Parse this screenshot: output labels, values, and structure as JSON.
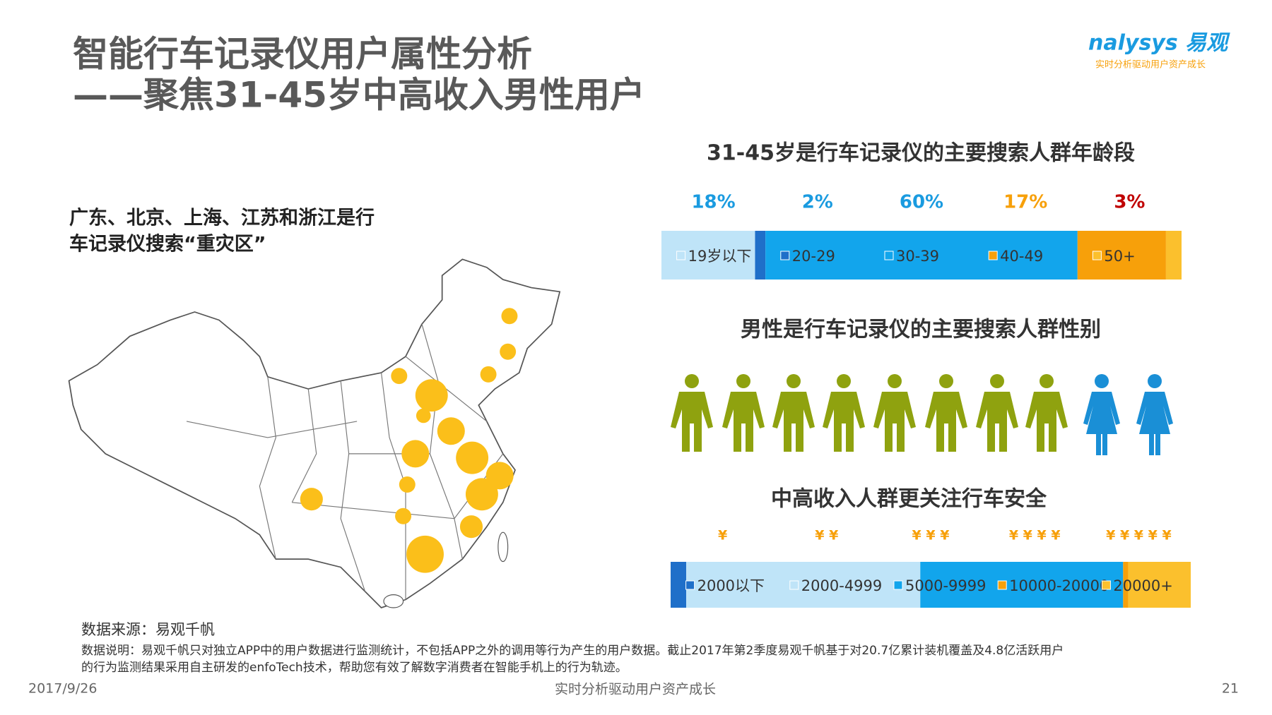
{
  "header": {
    "title_line1": "智能行车记录仪用户属性分析",
    "title_line2": "——聚焦31-45岁中高收入男性用户",
    "logo": "nalysys 易观",
    "logo_tagline": "实时分析驱动用户资产成长"
  },
  "map_caption": [
    "广东、北京、上海、江苏和浙江是行",
    "车记录仪搜索“重灾区”"
  ],
  "gender_title": "男性是行车记录仪的主要搜索人群性别",
  "chart_data": [
    {
      "type": "stacked-bar",
      "title": "31-45岁是行车记录仪的主要搜索人群年龄段",
      "categories": [
        "19岁以下",
        "20-29",
        "30-39",
        "40-49",
        "50+"
      ],
      "values": [
        18,
        2,
        60,
        17,
        3
      ],
      "value_labels": [
        "18%",
        "2%",
        "60%",
        "17%",
        "3%"
      ],
      "value_label_colors": [
        "#1a9be0",
        "#1a9be0",
        "#1a9be0",
        "#f7a00a",
        "#c00000"
      ],
      "colors": [
        "#bfe4f8",
        "#1f6fc9",
        "#12a5ec",
        "#f7a00a",
        "#fbc02d"
      ]
    },
    {
      "type": "stacked-bar",
      "title": "中高收入人群更关注行车安全",
      "categories": [
        "2000以下",
        "2000-4999",
        "5000-9999",
        "10000-20000",
        "20000+"
      ],
      "values": [
        3,
        45,
        39,
        1,
        12
      ],
      "symbols": [
        "¥",
        "¥ ¥",
        "¥ ¥ ¥",
        "¥ ¥ ¥ ¥",
        "¥ ¥ ¥ ¥ ¥"
      ],
      "colors": [
        "#1f6fc9",
        "#bfe4f8",
        "#12a5ec",
        "#f7a00a",
        "#fbc02d"
      ]
    }
  ],
  "footer": {
    "source": "数据来源：易观千帆",
    "note_lines": [
      "数据说明：易观千帆只对独立APP中的用户数据进行监测统计，不包括APP之外的调用等行为产生的用户数据。截止2017年第2季度易观千帆基于对20.7亿累计装机覆盖及4.8亿活跃用户",
      "的行为监测结果采用自主研发的enfoTech技术，帮助您有效了解数字消费者在智能手机上的行为轨迹。"
    ],
    "date": "2017/9/26",
    "tagline": "实时分析驱动用户资产成长",
    "page": "21"
  }
}
